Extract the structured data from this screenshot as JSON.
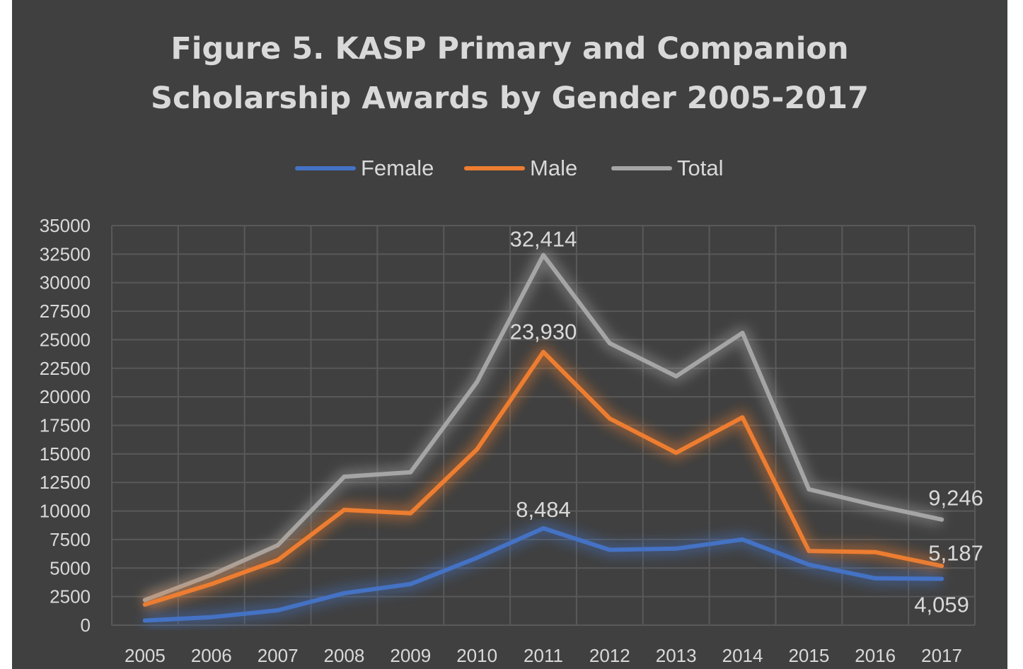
{
  "chart_data": {
    "type": "line",
    "title_line1": "Figure 5. KASP Primary and Companion",
    "title_line2": "Scholarship Awards by Gender 2005-2017",
    "xlabel": "",
    "ylabel": "",
    "categories": [
      "2005",
      "2006",
      "2007",
      "2008",
      "2009",
      "2010",
      "2011",
      "2012",
      "2013",
      "2014",
      "2015",
      "2016",
      "2017"
    ],
    "ylim": [
      0,
      35000
    ],
    "yticks": [
      0,
      2500,
      5000,
      7500,
      10000,
      12500,
      15000,
      17500,
      20000,
      22500,
      25000,
      27500,
      30000,
      32500,
      35000
    ],
    "grid": true,
    "legend_position": "top",
    "series": [
      {
        "name": "Female",
        "color": "#4472c4",
        "values": [
          400,
          700,
          1300,
          2800,
          3600,
          5900,
          8484,
          6600,
          6700,
          7500,
          5300,
          4100,
          4059
        ],
        "data_labels": [
          {
            "index": 6,
            "text": "8,484"
          },
          {
            "index": 12,
            "text": "4,059"
          }
        ]
      },
      {
        "name": "Male",
        "color": "#ed7d31",
        "values": [
          1800,
          3600,
          5700,
          10100,
          9800,
          15400,
          23930,
          18100,
          15100,
          18200,
          6500,
          6400,
          5187
        ],
        "data_labels": [
          {
            "index": 6,
            "text": "23,930"
          },
          {
            "index": 12,
            "text": "5,187"
          }
        ]
      },
      {
        "name": "Total",
        "color": "#a5a5a5",
        "values": [
          2200,
          4400,
          7000,
          13000,
          13400,
          21300,
          32414,
          24700,
          21800,
          25600,
          11900,
          10500,
          9246
        ],
        "data_labels": [
          {
            "index": 6,
            "text": "32,414"
          },
          {
            "index": 12,
            "text": "9,246"
          }
        ]
      }
    ]
  },
  "colors": {
    "background": "#404040",
    "gridline": "#595959",
    "text": "#d9d9d9"
  }
}
